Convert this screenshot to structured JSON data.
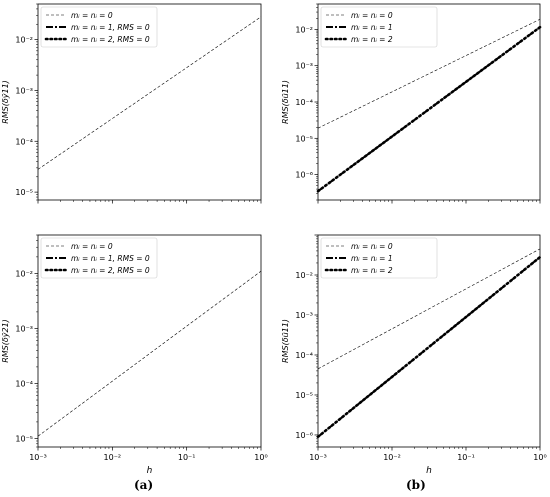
{
  "captions": [
    "(a)",
    "(b)"
  ],
  "chart_data": [
    {
      "type": "line",
      "panel": "top-left",
      "ylabel": "RMS(δȳ11)",
      "xlabel": "",
      "x_scale": "log",
      "y_scale": "log",
      "xlim": [
        0.001,
        1
      ],
      "ylim": [
        7e-06,
        0.05
      ],
      "x_ticks": [
        "",
        "",
        "",
        ""
      ],
      "y_ticks": [
        "10⁻⁵",
        "10⁻⁴",
        "10⁻³",
        "10⁻²"
      ],
      "legend_position": "top-left",
      "series": [
        {
          "name": "mᵢ = nᵢ = 0",
          "style": "dashed",
          "x": [
            0.001,
            1
          ],
          "y": [
            2.8e-05,
            0.028
          ]
        },
        {
          "name": "mᵢ = nᵢ = 1, RMS = 0",
          "style": "dashdot",
          "x": [],
          "y": []
        },
        {
          "name": "mᵢ = nᵢ = 2, RMS = 0",
          "style": "dotted",
          "x": [],
          "y": []
        }
      ]
    },
    {
      "type": "line",
      "panel": "top-right",
      "ylabel": "RMS(δū11)",
      "xlabel": "",
      "x_scale": "log",
      "y_scale": "log",
      "xlim": [
        0.001,
        1
      ],
      "ylim": [
        2e-07,
        0.05
      ],
      "x_ticks": [
        "",
        "",
        "",
        ""
      ],
      "y_ticks": [
        "10⁻⁶",
        "10⁻⁵",
        "10⁻⁴",
        "10⁻³",
        "10⁻²"
      ],
      "legend_position": "top-left",
      "series": [
        {
          "name": "mᵢ = nᵢ = 0",
          "style": "dashed",
          "x": [
            0.001,
            1
          ],
          "y": [
            1.9e-05,
            0.019
          ]
        },
        {
          "name": "mᵢ = nᵢ = 1",
          "style": "dashdot",
          "x": [
            0.001,
            1
          ],
          "y": [
            3.5e-07,
            0.0115
          ]
        },
        {
          "name": "mᵢ = nᵢ = 2",
          "style": "dotted",
          "x": [
            0.001,
            1
          ],
          "y": [
            3.5e-07,
            0.0115
          ]
        }
      ]
    },
    {
      "type": "line",
      "panel": "bottom-left",
      "ylabel": "RMS(δȳ21)",
      "xlabel": "h",
      "x_scale": "log",
      "y_scale": "log",
      "xlim": [
        0.001,
        1
      ],
      "ylim": [
        7e-06,
        0.05
      ],
      "x_ticks": [
        "10⁻³",
        "10⁻²",
        "10⁻¹",
        "10⁰"
      ],
      "y_ticks": [
        "10⁻⁵",
        "10⁻⁴",
        "10⁻³",
        "10⁻²"
      ],
      "legend_position": "top-left",
      "series": [
        {
          "name": "mᵢ = nᵢ = 0",
          "style": "dashed",
          "x": [
            0.001,
            0.5,
            1
          ],
          "y": [
            1.1e-05,
            0.0055,
            0.011
          ]
        },
        {
          "name": "mᵢ = nᵢ = 1, RMS = 0",
          "style": "dashdot",
          "x": [],
          "y": []
        },
        {
          "name": "mᵢ = nᵢ = 2, RMS = 0",
          "style": "dotted",
          "x": [],
          "y": []
        }
      ]
    },
    {
      "type": "line",
      "panel": "bottom-right",
      "ylabel": "RMS(δū11)",
      "xlabel": "h",
      "x_scale": "log",
      "y_scale": "log",
      "xlim": [
        0.001,
        1
      ],
      "ylim": [
        5e-07,
        0.1
      ],
      "x_ticks": [
        "10⁻³",
        "10⁻²",
        "10⁻¹",
        "10⁰"
      ],
      "y_ticks": [
        "10⁻⁶",
        "10⁻⁵",
        "10⁻⁴",
        "10⁻³",
        "10⁻²"
      ],
      "legend_position": "top-left",
      "series": [
        {
          "name": "mᵢ = nᵢ = 0",
          "style": "dashed",
          "x": [
            0.001,
            1
          ],
          "y": [
            4.5e-05,
            0.045
          ]
        },
        {
          "name": "mᵢ = nᵢ = 1",
          "style": "dashdot",
          "x": [
            0.001,
            1
          ],
          "y": [
            9e-07,
            0.028
          ]
        },
        {
          "name": "mᵢ = nᵢ = 2",
          "style": "dotted",
          "x": [
            0.001,
            1
          ],
          "y": [
            9e-07,
            0.028
          ]
        }
      ]
    }
  ]
}
